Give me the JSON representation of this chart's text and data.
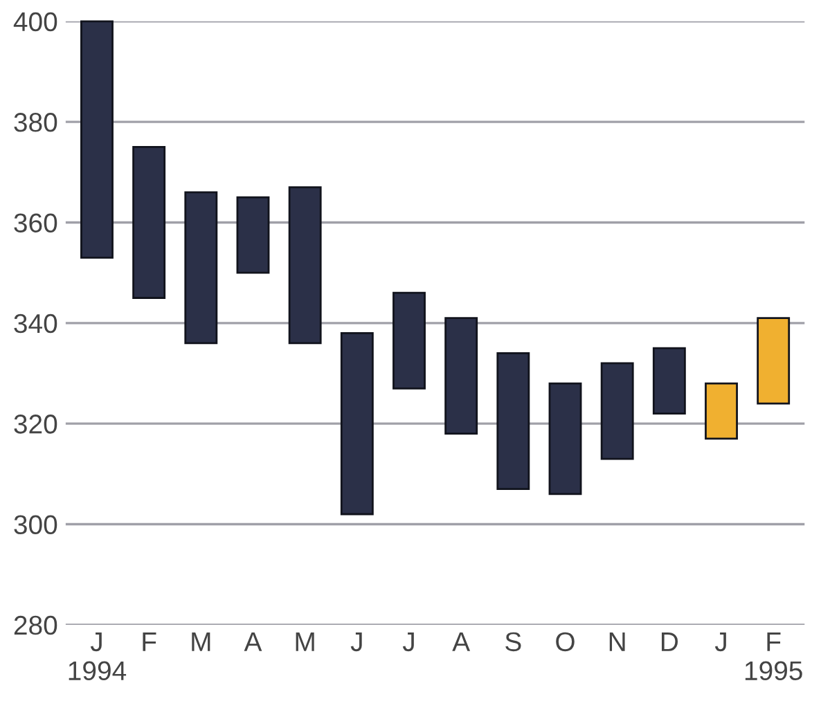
{
  "chart_data": {
    "type": "bar",
    "categories": [
      "J\n1994",
      "F",
      "M",
      "A",
      "M",
      "J",
      "J",
      "A",
      "S",
      "O",
      "N",
      "D",
      "J",
      "F\n1995"
    ],
    "base": [
      353,
      345,
      336,
      350,
      336,
      302,
      327,
      318,
      307,
      306,
      313,
      322,
      317,
      324
    ],
    "values": [
      47,
      30,
      30,
      15,
      31,
      36,
      19,
      23,
      27,
      22,
      19,
      13,
      11,
      17
    ],
    "colors": [
      "#2b3048",
      "#2b3048",
      "#2b3048",
      "#2b3048",
      "#2b3048",
      "#2b3048",
      "#2b3048",
      "#2b3048",
      "#2b3048",
      "#2b3048",
      "#2b3048",
      "#2b3048",
      "#f0b030",
      "#f0b030"
    ],
    "ylim": [
      280,
      400
    ],
    "yticks": [
      280,
      300,
      320,
      340,
      360,
      380,
      400
    ],
    "grid": "y",
    "legend": false
  }
}
